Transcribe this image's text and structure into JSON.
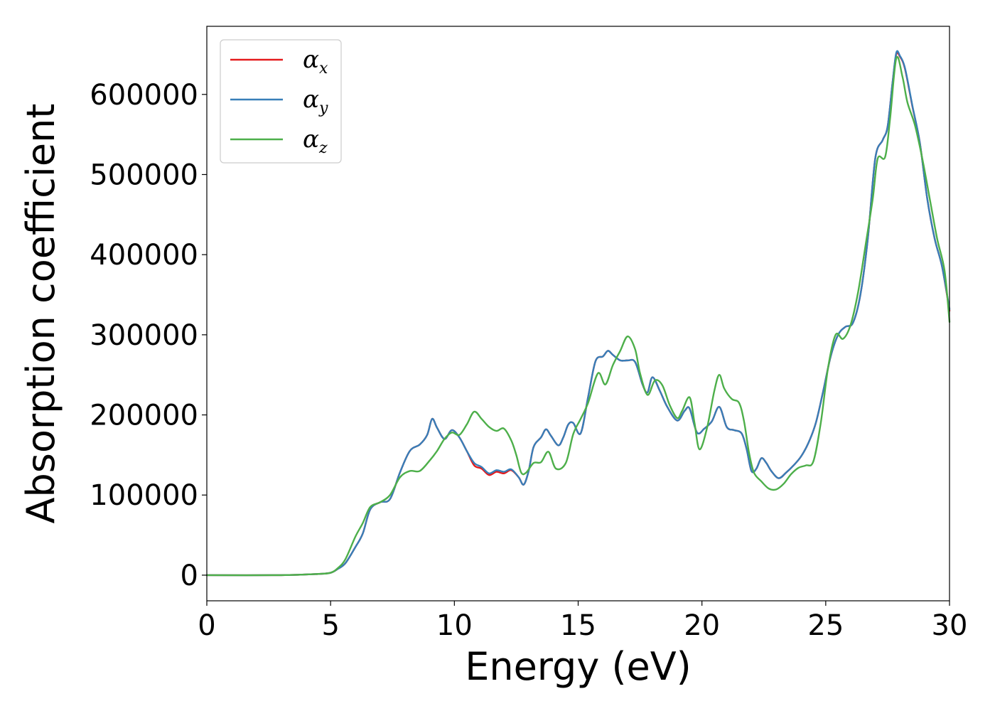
{
  "chart_data": {
    "type": "line",
    "title": "",
    "xlabel": "Energy (eV)",
    "ylabel": "Absorption coefficient",
    "xlim": [
      0,
      30
    ],
    "ylim": [
      -32000,
      685000
    ],
    "xticks": [
      0,
      5,
      10,
      15,
      20,
      25,
      30
    ],
    "xtick_labels": [
      "0",
      "5",
      "10",
      "15",
      "20",
      "25",
      "30"
    ],
    "yticks": [
      0,
      100000,
      200000,
      300000,
      400000,
      500000,
      600000
    ],
    "ytick_labels": [
      "0",
      "100000",
      "200000",
      "300000",
      "400000",
      "500000",
      "600000"
    ],
    "grid": false,
    "legend_position": "top-left",
    "series": [
      {
        "name": "α_x",
        "label_main": "α",
        "label_sub": "x",
        "color": "#e41a1c",
        "points": [
          [
            0,
            0
          ],
          [
            3,
            0
          ],
          [
            4.5,
            1500
          ],
          [
            5,
            3000
          ],
          [
            5.3,
            8000
          ],
          [
            5.6,
            15000
          ],
          [
            6,
            35000
          ],
          [
            6.3,
            52000
          ],
          [
            6.6,
            82000
          ],
          [
            7,
            91000
          ],
          [
            7.4,
            95000
          ],
          [
            7.8,
            128000
          ],
          [
            8.2,
            155000
          ],
          [
            8.6,
            163000
          ],
          [
            8.9,
            175000
          ],
          [
            9.1,
            195000
          ],
          [
            9.3,
            184000
          ],
          [
            9.6,
            170000
          ],
          [
            9.9,
            181000
          ],
          [
            10.2,
            172000
          ],
          [
            10.5,
            155000
          ],
          [
            10.8,
            137000
          ],
          [
            11.1,
            133000
          ],
          [
            11.4,
            125000
          ],
          [
            11.7,
            129000
          ],
          [
            12,
            127000
          ],
          [
            12.3,
            131000
          ],
          [
            12.6,
            122000
          ],
          [
            12.8,
            113000
          ],
          [
            13,
            130000
          ],
          [
            13.2,
            160000
          ],
          [
            13.5,
            172000
          ],
          [
            13.7,
            182000
          ],
          [
            13.9,
            174000
          ],
          [
            14.2,
            162000
          ],
          [
            14.4,
            172000
          ],
          [
            14.6,
            188000
          ],
          [
            14.8,
            190000
          ],
          [
            15.1,
            177000
          ],
          [
            15.4,
            222000
          ],
          [
            15.7,
            267000
          ],
          [
            16,
            273000
          ],
          [
            16.2,
            280000
          ],
          [
            16.4,
            275000
          ],
          [
            16.7,
            268000
          ],
          [
            17,
            268000
          ],
          [
            17.3,
            266000
          ],
          [
            17.6,
            238000
          ],
          [
            17.8,
            228000
          ],
          [
            18,
            247000
          ],
          [
            18.3,
            230000
          ],
          [
            18.6,
            210000
          ],
          [
            19,
            193000
          ],
          [
            19.3,
            205000
          ],
          [
            19.5,
            208000
          ],
          [
            19.8,
            178000
          ],
          [
            20.1,
            183000
          ],
          [
            20.4,
            192000
          ],
          [
            20.7,
            210000
          ],
          [
            21,
            185000
          ],
          [
            21.3,
            181000
          ],
          [
            21.6,
            177000
          ],
          [
            21.8,
            158000
          ],
          [
            22,
            130000
          ],
          [
            22.2,
            133000
          ],
          [
            22.4,
            146000
          ],
          [
            22.6,
            140000
          ],
          [
            22.8,
            130000
          ],
          [
            23.1,
            121000
          ],
          [
            23.4,
            128000
          ],
          [
            23.7,
            137000
          ],
          [
            24,
            148000
          ],
          [
            24.3,
            165000
          ],
          [
            24.6,
            190000
          ],
          [
            24.9,
            230000
          ],
          [
            25.2,
            273000
          ],
          [
            25.5,
            300000
          ],
          [
            25.8,
            310000
          ],
          [
            26.1,
            315000
          ],
          [
            26.4,
            350000
          ],
          [
            26.7,
            420000
          ],
          [
            27,
            520000
          ],
          [
            27.3,
            543000
          ],
          [
            27.5,
            560000
          ],
          [
            27.7,
            615000
          ],
          [
            27.85,
            650000
          ],
          [
            28,
            647000
          ],
          [
            28.2,
            632000
          ],
          [
            28.5,
            585000
          ],
          [
            28.8,
            540000
          ],
          [
            29.1,
            470000
          ],
          [
            29.4,
            420000
          ],
          [
            29.7,
            385000
          ],
          [
            30,
            330000
          ]
        ]
      },
      {
        "name": "α_y",
        "label_main": "α",
        "label_sub": "y",
        "color": "#377eb8",
        "points": [
          [
            0,
            0
          ],
          [
            3,
            0
          ],
          [
            4.5,
            1500
          ],
          [
            5,
            3000
          ],
          [
            5.3,
            8000
          ],
          [
            5.6,
            15000
          ],
          [
            6,
            35000
          ],
          [
            6.3,
            52000
          ],
          [
            6.6,
            82000
          ],
          [
            7,
            91000
          ],
          [
            7.4,
            95000
          ],
          [
            7.8,
            128000
          ],
          [
            8.2,
            155000
          ],
          [
            8.6,
            163000
          ],
          [
            8.9,
            175000
          ],
          [
            9.1,
            195000
          ],
          [
            9.3,
            184000
          ],
          [
            9.6,
            170000
          ],
          [
            9.9,
            181000
          ],
          [
            10.2,
            172000
          ],
          [
            10.5,
            155000
          ],
          [
            10.8,
            140000
          ],
          [
            11.1,
            135000
          ],
          [
            11.4,
            127000
          ],
          [
            11.7,
            131000
          ],
          [
            12,
            129000
          ],
          [
            12.3,
            132000
          ],
          [
            12.6,
            122000
          ],
          [
            12.8,
            113000
          ],
          [
            13,
            130000
          ],
          [
            13.2,
            160000
          ],
          [
            13.5,
            172000
          ],
          [
            13.7,
            182000
          ],
          [
            13.9,
            174000
          ],
          [
            14.2,
            162000
          ],
          [
            14.4,
            172000
          ],
          [
            14.6,
            188000
          ],
          [
            14.8,
            190000
          ],
          [
            15.1,
            177000
          ],
          [
            15.4,
            222000
          ],
          [
            15.7,
            267000
          ],
          [
            16,
            273000
          ],
          [
            16.2,
            280000
          ],
          [
            16.4,
            275000
          ],
          [
            16.7,
            268000
          ],
          [
            17,
            268000
          ],
          [
            17.3,
            266000
          ],
          [
            17.6,
            238000
          ],
          [
            17.8,
            228000
          ],
          [
            18,
            247000
          ],
          [
            18.3,
            230000
          ],
          [
            18.6,
            210000
          ],
          [
            19,
            193000
          ],
          [
            19.3,
            205000
          ],
          [
            19.5,
            208000
          ],
          [
            19.8,
            178000
          ],
          [
            20.1,
            183000
          ],
          [
            20.4,
            192000
          ],
          [
            20.7,
            210000
          ],
          [
            21,
            185000
          ],
          [
            21.3,
            181000
          ],
          [
            21.6,
            177000
          ],
          [
            21.8,
            158000
          ],
          [
            22,
            130000
          ],
          [
            22.2,
            133000
          ],
          [
            22.4,
            146000
          ],
          [
            22.6,
            140000
          ],
          [
            22.8,
            130000
          ],
          [
            23.1,
            121000
          ],
          [
            23.4,
            128000
          ],
          [
            23.7,
            137000
          ],
          [
            24,
            148000
          ],
          [
            24.3,
            165000
          ],
          [
            24.6,
            190000
          ],
          [
            24.9,
            230000
          ],
          [
            25.2,
            273000
          ],
          [
            25.5,
            300000
          ],
          [
            25.8,
            310000
          ],
          [
            26.1,
            315000
          ],
          [
            26.4,
            350000
          ],
          [
            26.7,
            420000
          ],
          [
            27,
            520000
          ],
          [
            27.3,
            543000
          ],
          [
            27.5,
            560000
          ],
          [
            27.7,
            615000
          ],
          [
            27.85,
            652000
          ],
          [
            28,
            648000
          ],
          [
            28.2,
            633000
          ],
          [
            28.5,
            586000
          ],
          [
            28.8,
            540000
          ],
          [
            29.1,
            470000
          ],
          [
            29.4,
            420000
          ],
          [
            29.7,
            385000
          ],
          [
            30,
            332000
          ]
        ]
      },
      {
        "name": "α_z",
        "label_main": "α",
        "label_sub": "z",
        "color": "#4daf4a",
        "points": [
          [
            0,
            0
          ],
          [
            3,
            0
          ],
          [
            4.5,
            1500
          ],
          [
            5,
            3000
          ],
          [
            5.3,
            9000
          ],
          [
            5.6,
            20000
          ],
          [
            6,
            48000
          ],
          [
            6.3,
            65000
          ],
          [
            6.6,
            85000
          ],
          [
            7,
            91000
          ],
          [
            7.4,
            100000
          ],
          [
            7.8,
            122000
          ],
          [
            8.2,
            130000
          ],
          [
            8.6,
            130000
          ],
          [
            9,
            143000
          ],
          [
            9.3,
            155000
          ],
          [
            9.6,
            170000
          ],
          [
            9.9,
            178000
          ],
          [
            10.2,
            175000
          ],
          [
            10.5,
            188000
          ],
          [
            10.8,
            204000
          ],
          [
            11.1,
            195000
          ],
          [
            11.4,
            185000
          ],
          [
            11.7,
            180000
          ],
          [
            12,
            183000
          ],
          [
            12.3,
            168000
          ],
          [
            12.5,
            150000
          ],
          [
            12.7,
            128000
          ],
          [
            12.9,
            128000
          ],
          [
            13.2,
            140000
          ],
          [
            13.5,
            141000
          ],
          [
            13.8,
            154000
          ],
          [
            14.1,
            133000
          ],
          [
            14.5,
            140000
          ],
          [
            14.8,
            176000
          ],
          [
            15.1,
            195000
          ],
          [
            15.4,
            215000
          ],
          [
            15.8,
            252000
          ],
          [
            16.1,
            238000
          ],
          [
            16.4,
            262000
          ],
          [
            16.7,
            280000
          ],
          [
            17,
            298000
          ],
          [
            17.3,
            282000
          ],
          [
            17.5,
            252000
          ],
          [
            17.8,
            225000
          ],
          [
            18.1,
            243000
          ],
          [
            18.4,
            237000
          ],
          [
            18.7,
            212000
          ],
          [
            19,
            196000
          ],
          [
            19.2,
            205000
          ],
          [
            19.5,
            222000
          ],
          [
            19.7,
            190000
          ],
          [
            19.9,
            157000
          ],
          [
            20.2,
            183000
          ],
          [
            20.5,
            230000
          ],
          [
            20.7,
            250000
          ],
          [
            20.9,
            233000
          ],
          [
            21.2,
            220000
          ],
          [
            21.5,
            215000
          ],
          [
            21.7,
            192000
          ],
          [
            21.9,
            153000
          ],
          [
            22.1,
            128000
          ],
          [
            22.4,
            117000
          ],
          [
            22.7,
            108000
          ],
          [
            23,
            107000
          ],
          [
            23.3,
            114000
          ],
          [
            23.6,
            126000
          ],
          [
            23.9,
            134000
          ],
          [
            24.2,
            137000
          ],
          [
            24.5,
            142000
          ],
          [
            24.8,
            190000
          ],
          [
            25.1,
            260000
          ],
          [
            25.4,
            300000
          ],
          [
            25.7,
            295000
          ],
          [
            26,
            312000
          ],
          [
            26.3,
            352000
          ],
          [
            26.6,
            410000
          ],
          [
            26.9,
            470000
          ],
          [
            27.1,
            520000
          ],
          [
            27.4,
            522000
          ],
          [
            27.6,
            570000
          ],
          [
            27.85,
            645000
          ],
          [
            28.1,
            622000
          ],
          [
            28.3,
            590000
          ],
          [
            28.6,
            562000
          ],
          [
            28.9,
            520000
          ],
          [
            29.2,
            470000
          ],
          [
            29.5,
            420000
          ],
          [
            29.8,
            380000
          ],
          [
            30,
            316000
          ]
        ]
      }
    ]
  }
}
